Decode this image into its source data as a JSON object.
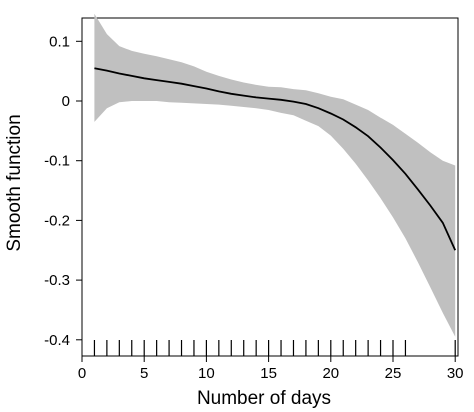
{
  "chart_data": {
    "type": "line",
    "title": "",
    "xlabel": "Number of days",
    "ylabel": "Smooth function",
    "xlim": [
      0,
      30
    ],
    "ylim": [
      -0.4,
      0.15
    ],
    "xticks": [
      "0",
      "5",
      "10",
      "15",
      "20",
      "25",
      "30"
    ],
    "yticks": [
      "0.1",
      "0",
      "-0.1",
      "-0.2",
      "-0.3",
      "-0.4"
    ],
    "grid": false,
    "legend": "none",
    "series": [
      {
        "x": [
          1,
          2,
          3,
          4,
          5,
          6,
          7,
          8,
          9,
          10,
          11,
          12,
          13,
          14,
          15,
          16,
          17,
          18,
          19,
          20,
          21,
          22,
          23,
          24,
          25,
          26,
          27,
          28,
          29,
          30
        ],
        "y": [
          0.055,
          0.051,
          0.046,
          0.042,
          0.038,
          0.035,
          0.032,
          0.029,
          0.025,
          0.021,
          0.016,
          0.012,
          0.009,
          0.006,
          0.004,
          0.002,
          -0.001,
          -0.005,
          -0.012,
          -0.021,
          -0.031,
          -0.044,
          -0.059,
          -0.078,
          -0.099,
          -0.122,
          -0.148,
          -0.175,
          -0.204,
          -0.25
        ],
        "lower": [
          -0.035,
          -0.012,
          -0.002,
          0.0,
          0.0,
          0.0,
          -0.002,
          -0.003,
          -0.004,
          -0.005,
          -0.006,
          -0.008,
          -0.01,
          -0.012,
          -0.015,
          -0.02,
          -0.024,
          -0.033,
          -0.042,
          -0.058,
          -0.08,
          -0.105,
          -0.133,
          -0.163,
          -0.195,
          -0.23,
          -0.27,
          -0.312,
          -0.355,
          -0.395
        ],
        "upper": [
          0.146,
          0.112,
          0.092,
          0.084,
          0.079,
          0.075,
          0.07,
          0.065,
          0.058,
          0.049,
          0.042,
          0.036,
          0.031,
          0.027,
          0.024,
          0.023,
          0.02,
          0.018,
          0.013,
          0.007,
          0.003,
          -0.006,
          -0.015,
          -0.028,
          -0.04,
          -0.055,
          -0.07,
          -0.086,
          -0.1,
          -0.108
        ]
      }
    ],
    "rug": [
      1,
      2,
      3,
      4,
      5,
      6,
      7,
      8,
      9,
      10,
      11,
      12,
      13,
      14,
      15,
      16,
      17,
      18,
      19,
      20,
      21,
      22,
      23,
      24,
      25,
      26,
      30
    ],
    "colors": {
      "band": "#c0c0c0",
      "line": "#000000",
      "axis": "#000000"
    }
  }
}
